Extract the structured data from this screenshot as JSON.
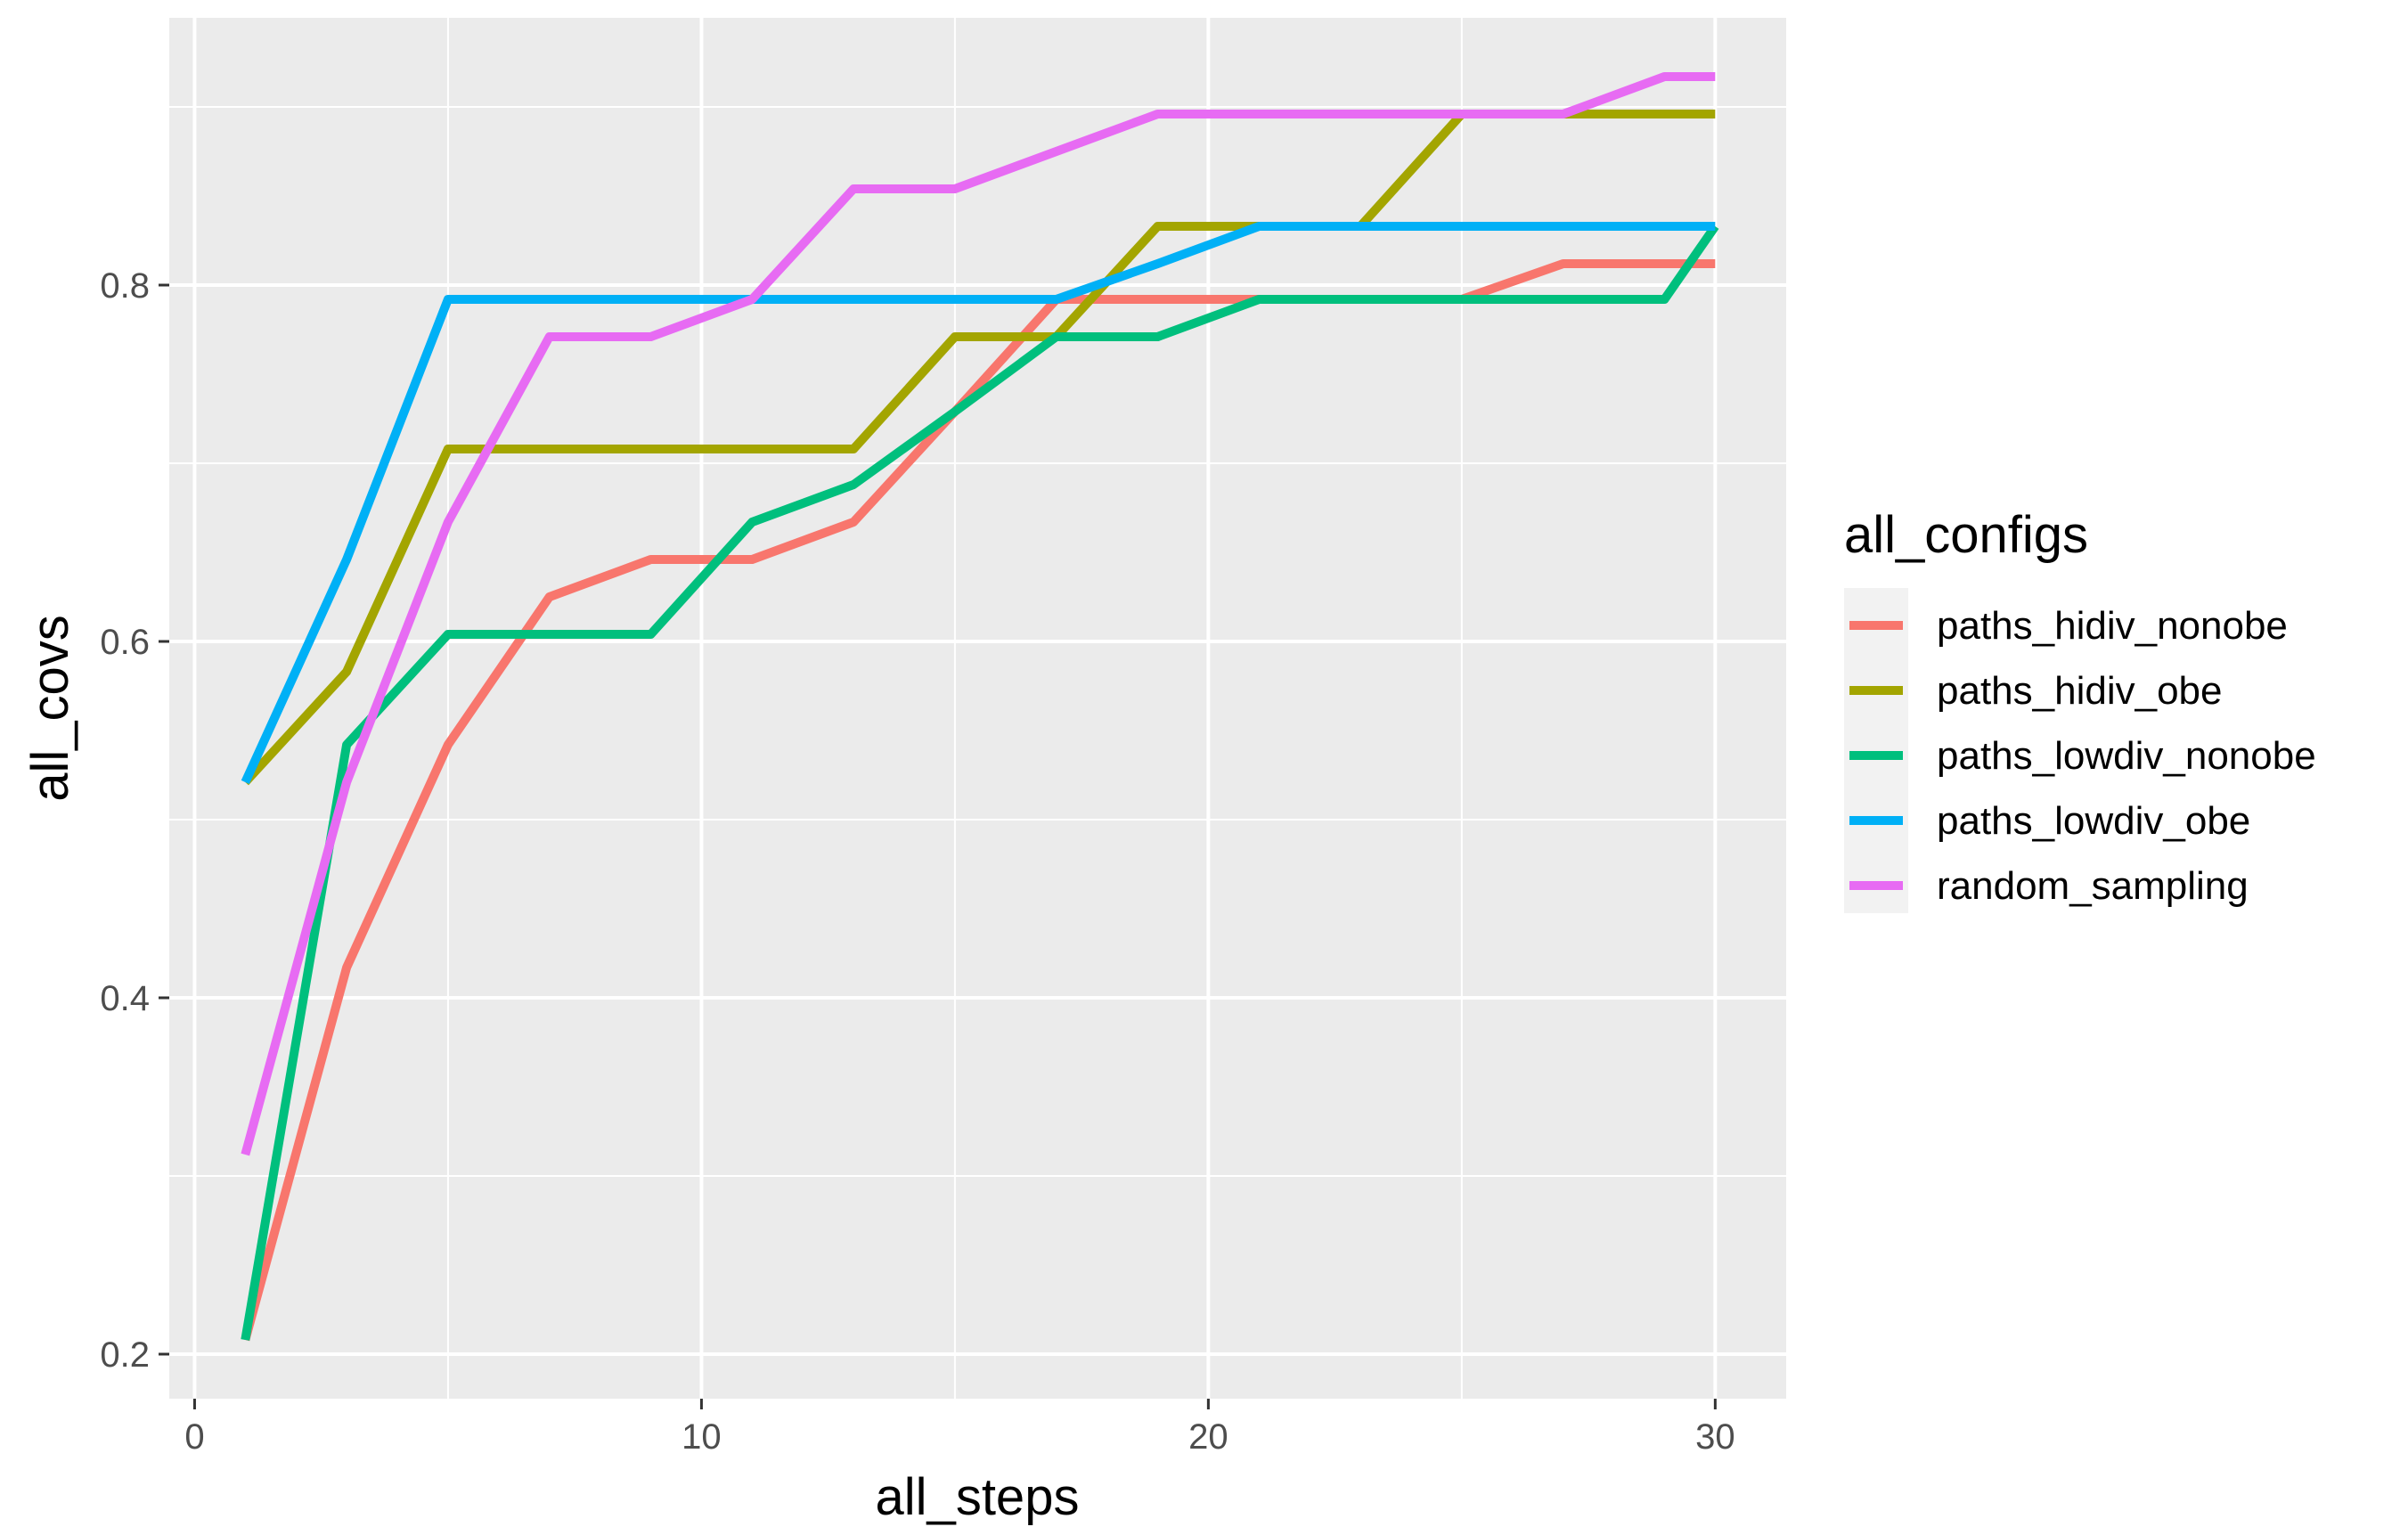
{
  "chart_data": {
    "type": "line",
    "xlabel": "all_steps",
    "ylabel": "all_covs",
    "xlim": [
      -0.5,
      31.4
    ],
    "ylim": [
      0.175,
      0.95
    ],
    "x_ticks": [
      0,
      10,
      20,
      30
    ],
    "x_tick_labels": [
      "0",
      "10",
      "20",
      "30"
    ],
    "y_ticks": [
      0.2,
      0.4,
      0.6,
      0.8
    ],
    "y_tick_labels": [
      "0.2",
      "0.4",
      "0.6",
      "0.8"
    ],
    "grid": true,
    "background": "#ebebeb",
    "legend": {
      "title": "all_configs",
      "position": "right"
    },
    "x": [
      1,
      3,
      5,
      7,
      9,
      11,
      13,
      15,
      17,
      19,
      21,
      23,
      25,
      27,
      29,
      30
    ],
    "series": [
      {
        "name": "paths_hidiv_nonobe",
        "color": "#F8766D",
        "values": [
          0.208,
          0.417,
          0.542,
          0.625,
          0.646,
          0.646,
          0.667,
          0.729,
          0.792,
          0.792,
          0.792,
          0.792,
          0.792,
          0.812,
          0.812,
          0.812
        ]
      },
      {
        "name": "paths_hidiv_obe",
        "color": "#A3A500",
        "values": [
          0.521,
          0.583,
          0.708,
          0.708,
          0.708,
          0.708,
          0.708,
          0.771,
          0.771,
          0.833,
          0.833,
          0.833,
          0.896,
          0.896,
          0.896,
          0.896
        ]
      },
      {
        "name": "paths_lowdiv_nonobe",
        "color": "#00BF7D",
        "values": [
          0.208,
          0.542,
          0.604,
          0.604,
          0.604,
          0.667,
          0.688,
          0.729,
          0.771,
          0.771,
          0.792,
          0.792,
          0.792,
          0.792,
          0.792,
          0.833
        ]
      },
      {
        "name": "paths_lowdiv_obe",
        "color": "#00B0F6",
        "values": [
          0.521,
          0.646,
          0.792,
          0.792,
          0.792,
          0.792,
          0.792,
          0.792,
          0.792,
          0.812,
          0.833,
          0.833,
          0.833,
          0.833,
          0.833,
          0.833
        ]
      },
      {
        "name": "random_sampling",
        "color": "#E76BF3",
        "values": [
          0.312,
          0.521,
          0.667,
          0.771,
          0.771,
          0.792,
          0.854,
          0.854,
          0.875,
          0.896,
          0.896,
          0.896,
          0.896,
          0.896,
          0.917,
          0.917
        ]
      }
    ]
  }
}
